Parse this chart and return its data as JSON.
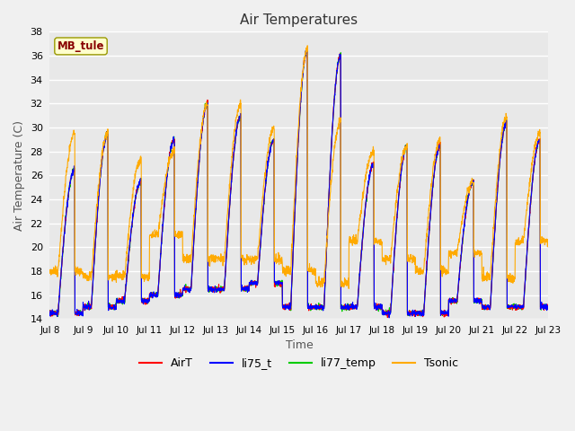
{
  "title": "Air Temperatures",
  "xlabel": "Time",
  "ylabel": "Air Temperature (C)",
  "ylim": [
    14,
    38
  ],
  "yticks": [
    14,
    16,
    18,
    20,
    22,
    24,
    26,
    28,
    30,
    32,
    34,
    36,
    38
  ],
  "xtick_labels": [
    "Jul 8",
    "Jul 9",
    "Jul 10",
    "Jul 11",
    "Jul 12",
    "Jul 13",
    "Jul 14",
    "Jul 15",
    "Jul 16",
    "Jul 17",
    "Jul 18",
    "Jul 19",
    "Jul 20",
    "Jul 21",
    "Jul 22",
    "Jul 23"
  ],
  "legend_labels": [
    "AirT",
    "li75_t",
    "li77_temp",
    "Tsonic"
  ],
  "legend_colors": [
    "#ff0000",
    "#0000ff",
    "#00cc00",
    "#ffaa00"
  ],
  "site_label": "MB_tule",
  "site_label_color": "#880000",
  "site_label_bg": "#ffffcc",
  "fig_bg_color": "#f0f0f0",
  "ax_bg_color": "#e8e8e8",
  "grid_color": "#ffffff",
  "n_days": 15,
  "samples_per_day": 144,
  "day_maxes": [
    26.5,
    29.5,
    25.5,
    29.0,
    32.0,
    31.0,
    29.0,
    36.5,
    36.0,
    27.0,
    28.5,
    28.5,
    25.5,
    30.5,
    29.0
  ],
  "day_mins": [
    14.5,
    15.0,
    15.5,
    16.0,
    16.5,
    16.5,
    17.0,
    15.0,
    15.0,
    15.0,
    14.5,
    14.5,
    15.5,
    15.0,
    15.0
  ],
  "tsonic_day_maxes": [
    29.5,
    29.5,
    27.5,
    28.0,
    32.0,
    32.0,
    30.0,
    36.5,
    30.5,
    28.0,
    28.5,
    29.0,
    25.5,
    31.0,
    29.5
  ],
  "tsonic_day_mins": [
    18.0,
    17.5,
    17.5,
    21.0,
    19.0,
    19.0,
    19.0,
    18.0,
    17.0,
    20.5,
    19.0,
    18.0,
    19.5,
    17.5,
    20.5
  ]
}
